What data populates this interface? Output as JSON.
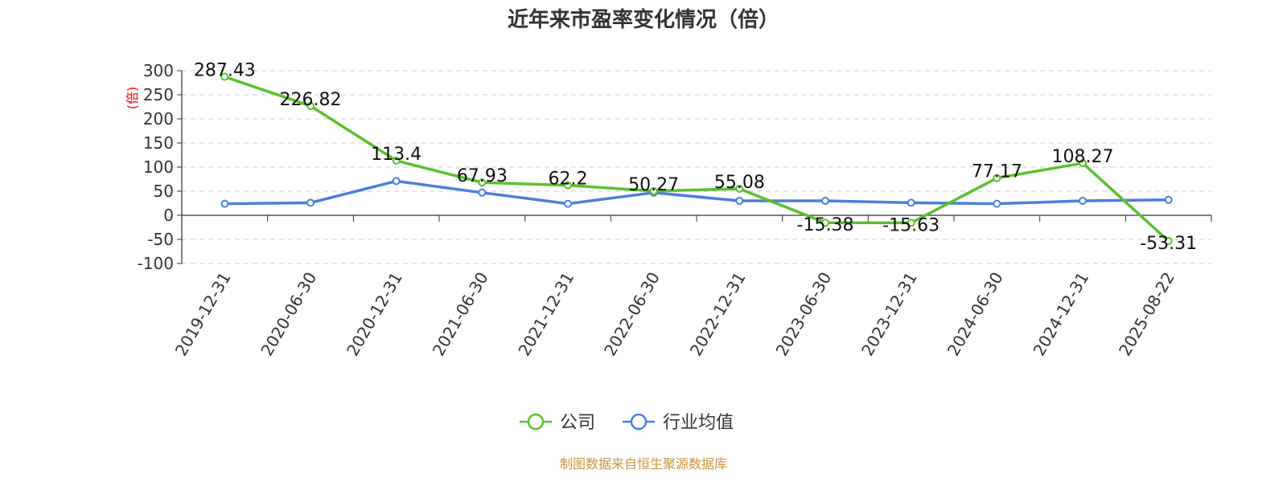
{
  "chart_data": {
    "type": "line",
    "title": "近年来市盈率变化情况（倍）",
    "ylabel": "(倍)",
    "ylim": [
      -100,
      300
    ],
    "yticks": [
      300,
      250,
      200,
      150,
      100,
      50,
      0,
      -50,
      -100
    ],
    "grid": true,
    "legend_position": "bottom-center",
    "categories": [
      "2019-12-31",
      "2020-06-30",
      "2020-12-31",
      "2021-06-30",
      "2021-12-31",
      "2022-06-30",
      "2022-12-31",
      "2023-06-30",
      "2023-12-31",
      "2024-06-30",
      "2024-12-31",
      "2025-08-22"
    ],
    "series": [
      {
        "name": "公司",
        "color": "#5ac12c",
        "values": [
          287.43,
          226.82,
          113.4,
          67.93,
          62.2,
          50.27,
          55.08,
          -15.38,
          -15.63,
          77.17,
          108.27,
          -53.31
        ],
        "labels": [
          "287.43",
          "226.82",
          "113.4",
          "67.93",
          "62.2",
          "50.27",
          "55.08",
          "-15.38",
          "-15.63",
          "77.17",
          "108.27",
          "-53.31"
        ]
      },
      {
        "name": "行业均值",
        "color": "#4a7fdb",
        "values": [
          24,
          26,
          71,
          47,
          24,
          47,
          30,
          30,
          26,
          24,
          30,
          32
        ]
      }
    ]
  },
  "source": "制图数据来自恒生聚源数据库"
}
